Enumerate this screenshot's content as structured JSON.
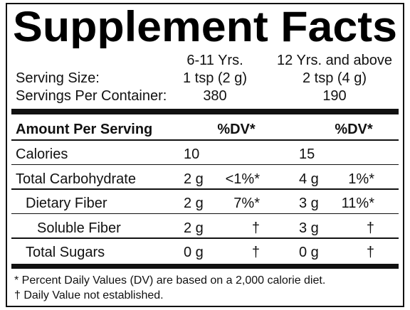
{
  "title": "Supplement Facts",
  "columns": [
    "6-11 Yrs.",
    "12 Yrs. and above"
  ],
  "serving_size": {
    "label": "Serving Size:",
    "values": [
      "1 tsp (2 g)",
      "2 tsp (4 g)"
    ]
  },
  "servings_per_container": {
    "label": "Servings Per Container:",
    "values": [
      380,
      190
    ]
  },
  "table": {
    "header": {
      "amount": "Amount Per Serving",
      "dv": "%DV*"
    },
    "rows": [
      {
        "name": "Calories",
        "amounts": [
          "10",
          "15"
        ]
      },
      {
        "name": "Total Carbohydrate",
        "amounts": [
          "2 g",
          "4 g"
        ],
        "dv": [
          "<1%*",
          "1%*"
        ]
      },
      {
        "name": "Dietary Fiber",
        "amounts": [
          "2 g",
          "3 g"
        ],
        "dv": [
          "7%*",
          "11%*"
        ]
      },
      {
        "name": "Soluble Fiber",
        "amounts": [
          "2 g",
          "3 g"
        ],
        "dv": [
          "†",
          "†"
        ]
      },
      {
        "name": "Total Sugars",
        "amounts": [
          "0 g",
          "0 g"
        ],
        "dv": [
          "†",
          "†"
        ]
      }
    ]
  },
  "footnotes": [
    "* Percent Daily Values (DV) are based on a 2,000 calorie diet.",
    "† Daily Value not established."
  ]
}
